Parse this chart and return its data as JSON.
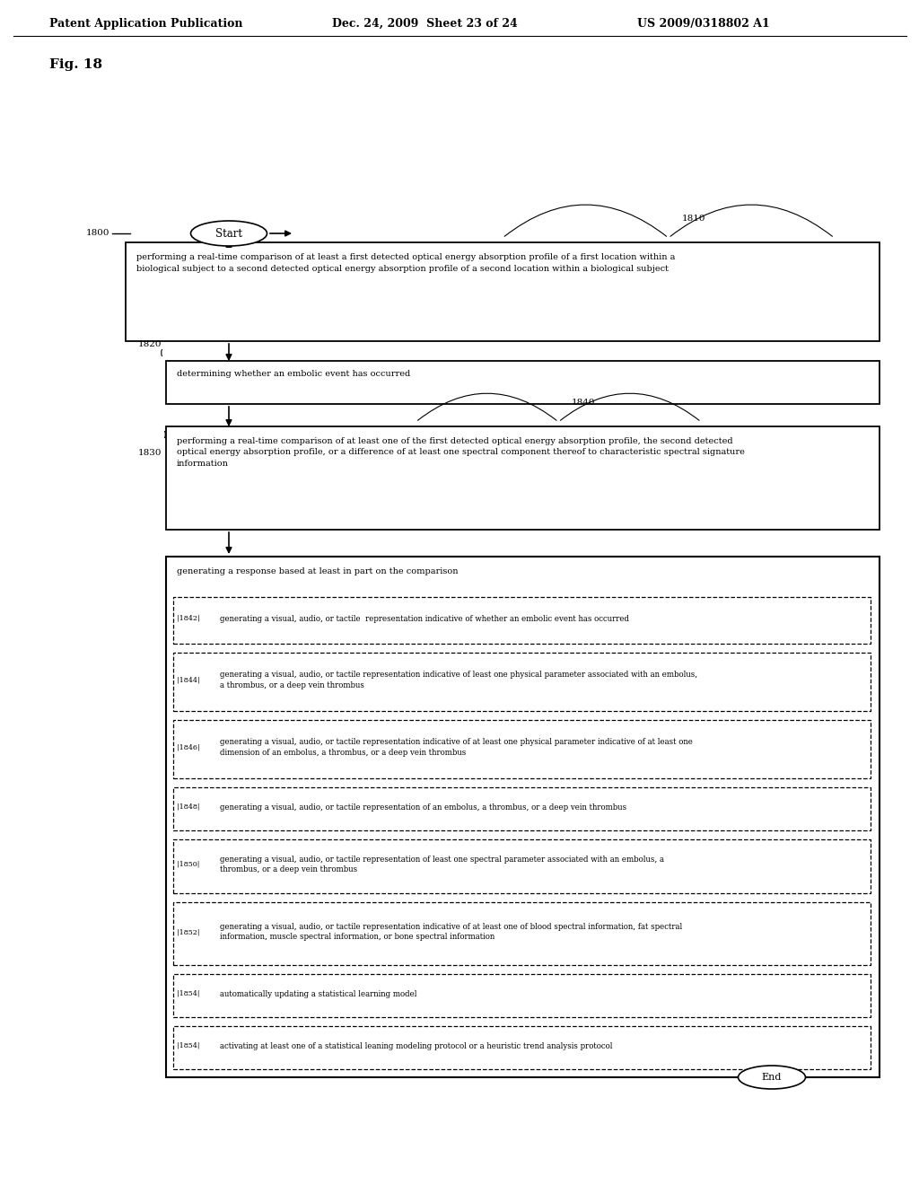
{
  "bg_color": "#ffffff",
  "header_left": "Patent Application Publication",
  "header_mid": "Dec. 24, 2009  Sheet 23 of 24",
  "header_right": "US 2009/0318802 A1",
  "fig_label": "Fig. 18",
  "start_label": "Start",
  "end_label": "End",
  "label_1800": "1800",
  "label_1810": "1810",
  "label_1820": "1820",
  "label_1830": "1830",
  "label_1840": "1840",
  "box1_text": "performing a real-time comparison of at least a first detected optical energy absorption profile of a first location within a\nbiological subject to a second detected optical energy absorption profile of a second location within a biological subject",
  "box2_text": "determining whether an embolic event has occurred",
  "box3_text": "performing a real-time comparison of at least one of the first detected optical energy absorption profile, the second detected\noptical energy absorption profile, or a difference of at least one spectral component thereof to characteristic spectral signature\ninformation",
  "box4_text": "generating a response based at least in part on the comparison",
  "sub_nums": [
    "1842",
    "1844",
    "1846",
    "1848",
    "1850",
    "1852",
    "1854",
    "1854"
  ],
  "sub_texts": [
    "generating a visual, audio, or tactile  representation indicative of whether an embolic event has occurred",
    "generating a visual, audio, or tactile representation indicative of least one physical parameter associated with an embolus,\na thrombus, or a deep vein thrombus",
    "generating a visual, audio, or tactile representation indicative of at least one physical parameter indicative of at least one\ndimension of an embolus, a thrombus, or a deep vein thrombus",
    "generating a visual, audio, or tactile representation of an embolus, a thrombus, or a deep vein thrombus",
    "generating a visual, audio, or tactile representation of least one spectral parameter associated with an embolus, a\nthrombus, or a deep vein thrombus",
    "generating a visual, audio, or tactile representation indicative of at least one of blood spectral information, fat spectral\ninformation, muscle spectral information, or bone spectral information",
    "automatically updating a statistical learning model",
    "activating at least one of a statistical leaning modeling protocol or a heuristic trend analysis protocol"
  ]
}
